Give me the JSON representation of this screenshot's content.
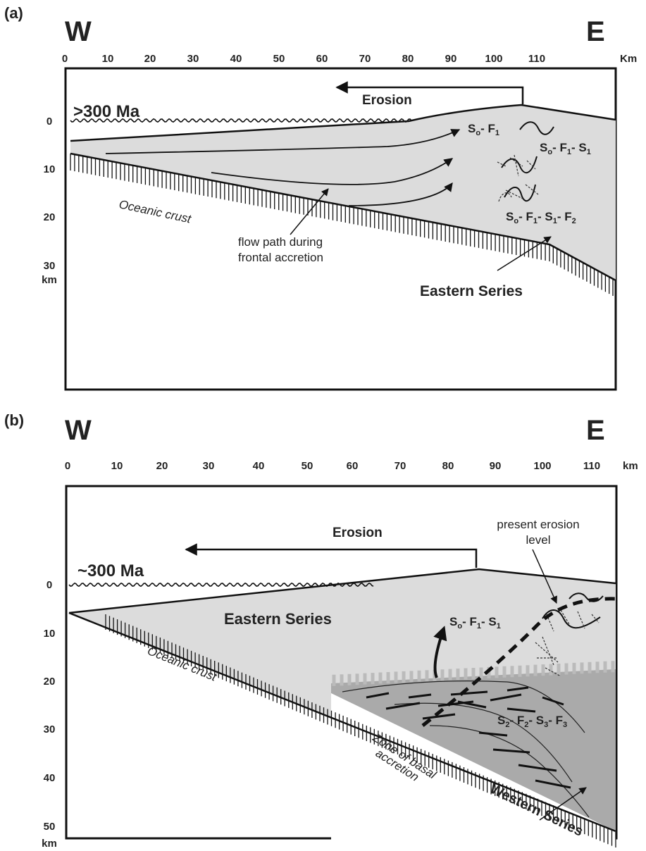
{
  "panel_a": {
    "label": "(a)",
    "west": "W",
    "east": "E",
    "x_ticks": [
      "0",
      "10",
      "20",
      "30",
      "40",
      "50",
      "60",
      "70",
      "80",
      "90",
      "100",
      "110"
    ],
    "x_unit": "Km",
    "y_ticks": [
      "0",
      "10",
      "20",
      "30"
    ],
    "y_unit": "km",
    "age": ">300 Ma",
    "erosion": "Erosion",
    "oceanic_crust": "Oceanic crust",
    "flow_path_1": "flow path during",
    "flow_path_2": "frontal accretion",
    "eastern_series": "Eastern Series",
    "struct": {
      "s_a": "S",
      "s_a_sub": "o",
      "f_a": "- F",
      "f_a_sub": "1",
      "s_b": "S",
      "s_b_sub": "o",
      "f_b": "- F",
      "f_b_sub": "1",
      "s_b2": "- S",
      "s_b2_sub": "1",
      "s_c": "S",
      "s_c_sub": "o",
      "f_c": "- F",
      "f_c_sub": "1",
      "s_c2": "- S",
      "s_c2_sub": "1",
      "f_c2": "- F",
      "f_c2_sub": "2"
    }
  },
  "panel_b": {
    "label": "(b)",
    "west": "W",
    "east": "E",
    "x_ticks": [
      "0",
      "10",
      "20",
      "30",
      "40",
      "50",
      "60",
      "70",
      "80",
      "90",
      "100",
      "110"
    ],
    "x_unit": "km",
    "y_ticks": [
      "0",
      "10",
      "20",
      "30",
      "40",
      "50"
    ],
    "y_unit": "km",
    "age": "~300 Ma",
    "erosion": "Erosion",
    "present_erosion_1": "present erosion",
    "present_erosion_2": "level",
    "eastern_series": "Eastern Series",
    "oceanic_crust": "Oceanic crust",
    "zone_1": "Zone of basal",
    "zone_2": "accretion",
    "western_series": "Western Series",
    "struct": {
      "s_a": "S",
      "s_a_sub": "o",
      "f_a": "- F",
      "f_a_sub": "1",
      "s_a2": "- S",
      "s_a2_sub": "1",
      "s_b": "S",
      "s_b_sub": "2",
      "f_b": "- F",
      "f_b_sub": "2",
      "s_b2": "- S",
      "s_b2_sub": "3",
      "f_b2": "- F",
      "f_b2_sub": "3"
    }
  }
}
